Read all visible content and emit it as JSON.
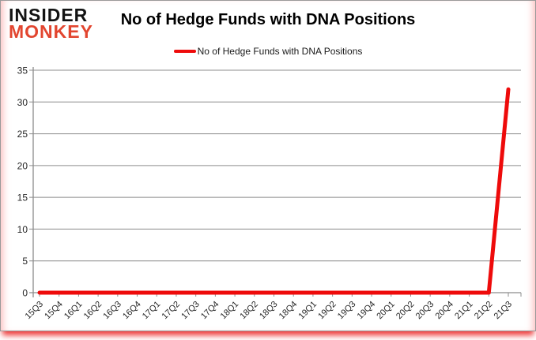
{
  "logo": {
    "line1": "INSIDER",
    "line2": "MONKEY"
  },
  "header": {
    "title": "No of Hedge Funds with DNA Positions"
  },
  "legend": {
    "label": "No of Hedge Funds with DNA Positions"
  },
  "chart_data": {
    "type": "line",
    "title": "No of Hedge Funds with DNA Positions",
    "categories": [
      "15Q3",
      "15Q4",
      "16Q1",
      "16Q2",
      "16Q3",
      "16Q4",
      "17Q1",
      "17Q2",
      "17Q3",
      "17Q4",
      "18Q1",
      "18Q2",
      "18Q3",
      "18Q4",
      "19Q1",
      "19Q2",
      "19Q3",
      "19Q4",
      "20Q1",
      "20Q2",
      "20Q3",
      "20Q4",
      "21Q1",
      "21Q2",
      "21Q3"
    ],
    "series": [
      {
        "name": "No of Hedge Funds with DNA Positions",
        "values": [
          0,
          0,
          0,
          0,
          0,
          0,
          0,
          0,
          0,
          0,
          0,
          0,
          0,
          0,
          0,
          0,
          0,
          0,
          0,
          0,
          0,
          0,
          0,
          0,
          32
        ]
      }
    ],
    "xlabel": "",
    "ylabel": "",
    "ylim": [
      0,
      35
    ],
    "ytick_step": 5,
    "yticks": [
      0,
      5,
      10,
      15,
      20,
      25,
      30,
      35
    ],
    "grid": true,
    "legend_position": "top-center",
    "x_label_rotation": -45
  },
  "colors": {
    "line_red": "#ee0b0b",
    "logo_black": "#131313",
    "logo_red": "#e2452f",
    "axis_gray": "#8c8c8c",
    "tick_label": "#262626",
    "bottom_glow_red": "#eb1919"
  }
}
